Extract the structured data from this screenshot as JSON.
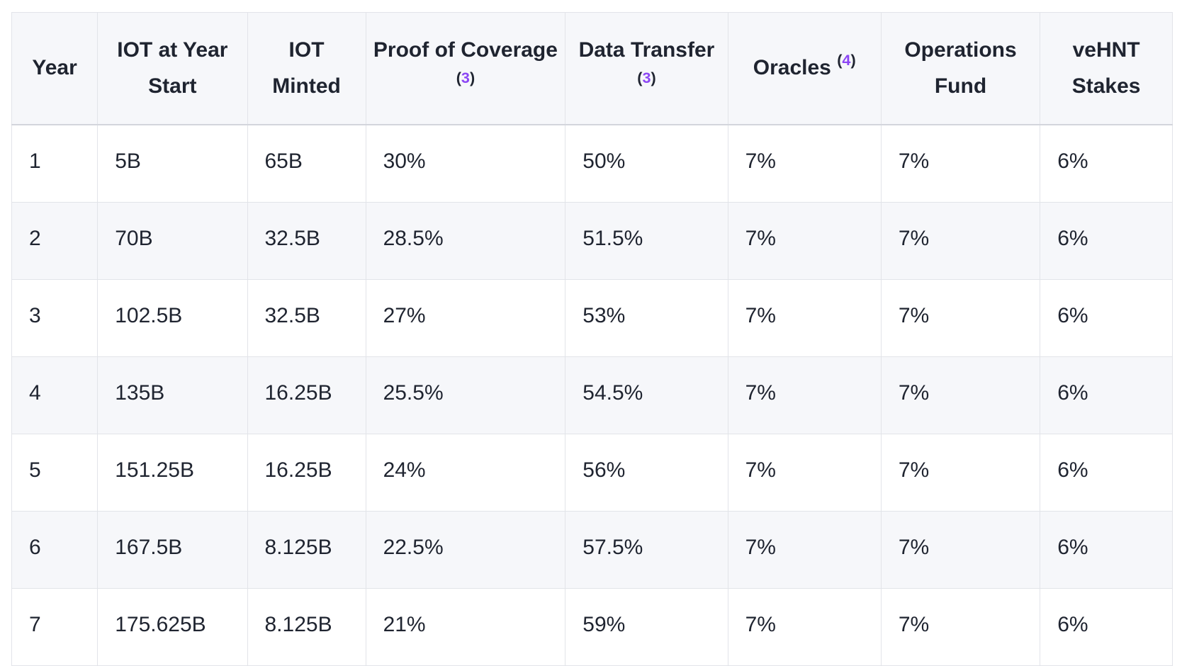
{
  "colors": {
    "text": "#1f2430",
    "header_bg": "#f6f7fa",
    "row_alt_bg": "#f6f7fa",
    "border": "#e2e4e9",
    "header_bottom_border": "#d3d5dc",
    "footnote_purple": "#8c46f5",
    "page_background": "#ffffff"
  },
  "table": {
    "columns": [
      {
        "id": "year",
        "label": "Year",
        "footnote": null
      },
      {
        "id": "iot-at-year-start",
        "label": "IOT at Year Start",
        "footnote": null
      },
      {
        "id": "iot-minted",
        "label": "IOT Minted",
        "footnote": null
      },
      {
        "id": "proof-of-coverage",
        "label": "Proof of Coverage",
        "footnote": "3"
      },
      {
        "id": "data-transfer",
        "label": "Data Transfer",
        "footnote": "3"
      },
      {
        "id": "oracles",
        "label": "Oracles",
        "footnote": "4"
      },
      {
        "id": "operations-fund",
        "label": "Operations Fund",
        "footnote": null
      },
      {
        "id": "vehnt-stakes",
        "label": "veHNT Stakes",
        "footnote": null
      }
    ],
    "rows": [
      [
        "1",
        "5B",
        "65B",
        "30%",
        "50%",
        "7%",
        "7%",
        "6%"
      ],
      [
        "2",
        "70B",
        "32.5B",
        "28.5%",
        "51.5%",
        "7%",
        "7%",
        "6%"
      ],
      [
        "3",
        "102.5B",
        "32.5B",
        "27%",
        "53%",
        "7%",
        "7%",
        "6%"
      ],
      [
        "4",
        "135B",
        "16.25B",
        "25.5%",
        "54.5%",
        "7%",
        "7%",
        "6%"
      ],
      [
        "5",
        "151.25B",
        "16.25B",
        "24%",
        "56%",
        "7%",
        "7%",
        "6%"
      ],
      [
        "6",
        "167.5B",
        "8.125B",
        "22.5%",
        "57.5%",
        "7%",
        "7%",
        "6%"
      ],
      [
        "7",
        "175.625B",
        "8.125B",
        "21%",
        "59%",
        "7%",
        "7%",
        "6%"
      ]
    ]
  }
}
